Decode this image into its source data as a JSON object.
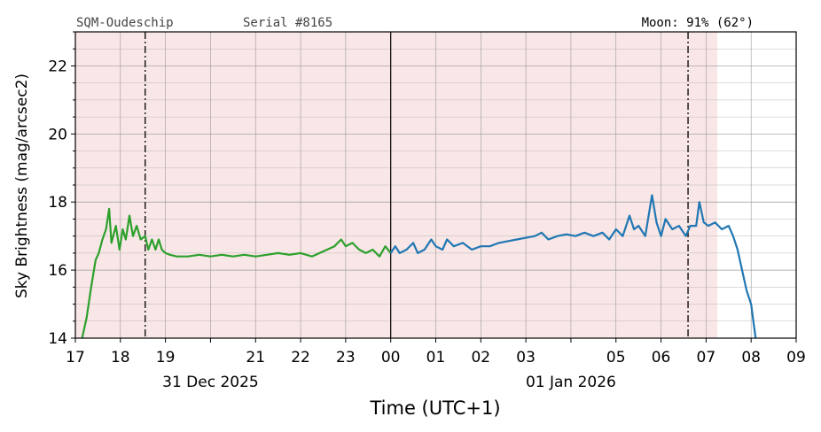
{
  "header": {
    "station": "SQM-Oudeschip",
    "serial": "Serial #8165",
    "moon": "Moon: 91% (62°)"
  },
  "chart_data": {
    "type": "line",
    "xlabel": "Time (UTC+1)",
    "ylabel": "Sky Brightness (mag/arcsec2)",
    "ylim": [
      14,
      23
    ],
    "xlim_hours": [
      17,
      33
    ],
    "y_ticks": [
      "14",
      "16",
      "18",
      "20",
      "22"
    ],
    "x_ticks": [
      {
        "h": 17,
        "label": "17"
      },
      {
        "h": 18,
        "label": "18"
      },
      {
        "h": 19,
        "label": "19"
      },
      {
        "h": 20,
        "label": ""
      },
      {
        "h": 21,
        "label": "21"
      },
      {
        "h": 22,
        "label": "22"
      },
      {
        "h": 23,
        "label": "23"
      },
      {
        "h": 24,
        "label": "00"
      },
      {
        "h": 25,
        "label": "01"
      },
      {
        "h": 26,
        "label": "02"
      },
      {
        "h": 27,
        "label": "03"
      },
      {
        "h": 28,
        "label": ""
      },
      {
        "h": 29,
        "label": "05"
      },
      {
        "h": 30,
        "label": "06"
      },
      {
        "h": 31,
        "label": "07"
      },
      {
        "h": 32,
        "label": "08"
      },
      {
        "h": 33,
        "label": "09"
      }
    ],
    "date_labels": [
      {
        "h": 20,
        "label": "31 Dec 2025"
      },
      {
        "h": 28,
        "label": "01 Jan 2026"
      }
    ],
    "grid": true,
    "night_shading": {
      "start_h": 17,
      "end_h": 31.25,
      "color": "#f9e6e6"
    },
    "midnight_h": 24,
    "twilight_lines_h": [
      18.55,
      30.6
    ],
    "series": [
      {
        "color": "#2ca02c",
        "points": [
          [
            17.15,
            14.0
          ],
          [
            17.25,
            14.6
          ],
          [
            17.35,
            15.5
          ],
          [
            17.45,
            16.3
          ],
          [
            17.52,
            16.5
          ],
          [
            17.6,
            16.9
          ],
          [
            17.68,
            17.2
          ],
          [
            17.75,
            17.8
          ],
          [
            17.8,
            16.8
          ],
          [
            17.9,
            17.3
          ],
          [
            17.98,
            16.6
          ],
          [
            18.05,
            17.2
          ],
          [
            18.12,
            16.9
          ],
          [
            18.2,
            17.6
          ],
          [
            18.28,
            17.0
          ],
          [
            18.36,
            17.3
          ],
          [
            18.45,
            16.9
          ],
          [
            18.55,
            17.0
          ],
          [
            18.62,
            16.6
          ],
          [
            18.7,
            16.9
          ],
          [
            18.78,
            16.6
          ],
          [
            18.85,
            16.9
          ],
          [
            18.92,
            16.6
          ],
          [
            19.0,
            16.5
          ],
          [
            19.1,
            16.45
          ],
          [
            19.25,
            16.4
          ],
          [
            19.5,
            16.4
          ],
          [
            19.75,
            16.45
          ],
          [
            20.0,
            16.4
          ],
          [
            20.25,
            16.45
          ],
          [
            20.5,
            16.4
          ],
          [
            20.75,
            16.45
          ],
          [
            21.0,
            16.4
          ],
          [
            21.25,
            16.45
          ],
          [
            21.5,
            16.5
          ],
          [
            21.75,
            16.45
          ],
          [
            22.0,
            16.5
          ],
          [
            22.25,
            16.4
          ],
          [
            22.5,
            16.55
          ],
          [
            22.75,
            16.7
          ],
          [
            22.9,
            16.9
          ],
          [
            23.0,
            16.7
          ],
          [
            23.15,
            16.8
          ],
          [
            23.3,
            16.6
          ],
          [
            23.45,
            16.5
          ],
          [
            23.6,
            16.6
          ],
          [
            23.75,
            16.4
          ],
          [
            23.88,
            16.7
          ],
          [
            24.0,
            16.5
          ]
        ]
      },
      {
        "color": "#1f77b4",
        "points": [
          [
            24.0,
            16.5
          ],
          [
            24.1,
            16.7
          ],
          [
            24.2,
            16.5
          ],
          [
            24.35,
            16.6
          ],
          [
            24.5,
            16.8
          ],
          [
            24.6,
            16.5
          ],
          [
            24.75,
            16.6
          ],
          [
            24.9,
            16.9
          ],
          [
            25.0,
            16.7
          ],
          [
            25.15,
            16.6
          ],
          [
            25.25,
            16.9
          ],
          [
            25.4,
            16.7
          ],
          [
            25.6,
            16.8
          ],
          [
            25.8,
            16.6
          ],
          [
            26.0,
            16.7
          ],
          [
            26.2,
            16.7
          ],
          [
            26.4,
            16.8
          ],
          [
            26.6,
            16.85
          ],
          [
            26.8,
            16.9
          ],
          [
            27.0,
            16.95
          ],
          [
            27.2,
            17.0
          ],
          [
            27.35,
            17.1
          ],
          [
            27.5,
            16.9
          ],
          [
            27.7,
            17.0
          ],
          [
            27.9,
            17.05
          ],
          [
            28.1,
            17.0
          ],
          [
            28.3,
            17.1
          ],
          [
            28.5,
            17.0
          ],
          [
            28.7,
            17.1
          ],
          [
            28.85,
            16.9
          ],
          [
            29.0,
            17.2
          ],
          [
            29.15,
            17.0
          ],
          [
            29.3,
            17.6
          ],
          [
            29.4,
            17.2
          ],
          [
            29.5,
            17.3
          ],
          [
            29.65,
            17.0
          ],
          [
            29.8,
            18.2
          ],
          [
            29.9,
            17.4
          ],
          [
            30.0,
            17.0
          ],
          [
            30.1,
            17.5
          ],
          [
            30.25,
            17.2
          ],
          [
            30.4,
            17.3
          ],
          [
            30.55,
            17.0
          ],
          [
            30.65,
            17.3
          ],
          [
            30.78,
            17.3
          ],
          [
            30.85,
            18.0
          ],
          [
            30.95,
            17.4
          ],
          [
            31.05,
            17.3
          ],
          [
            31.2,
            17.4
          ],
          [
            31.35,
            17.2
          ],
          [
            31.5,
            17.3
          ],
          [
            31.6,
            17.0
          ],
          [
            31.7,
            16.6
          ],
          [
            31.8,
            16.0
          ],
          [
            31.9,
            15.4
          ],
          [
            32.0,
            15.0
          ],
          [
            32.05,
            14.5
          ],
          [
            32.1,
            14.0
          ]
        ]
      }
    ]
  }
}
